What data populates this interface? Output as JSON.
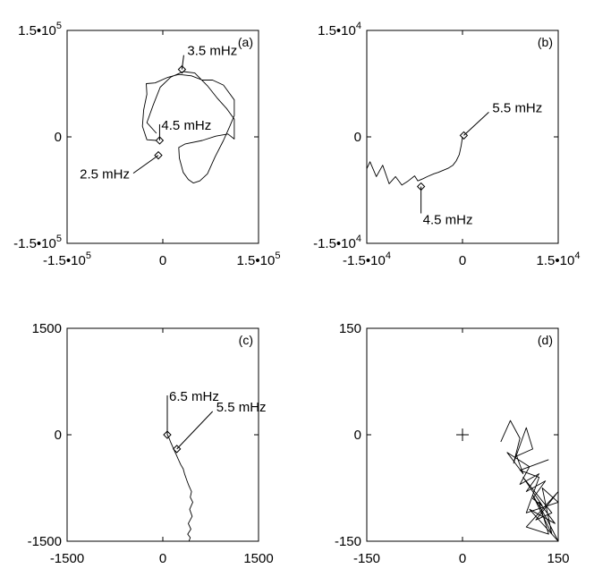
{
  "chart_data": [
    {
      "type": "line",
      "panel_label": "(a)",
      "xlim": [
        -150000,
        150000
      ],
      "ylim": [
        -150000,
        150000
      ],
      "x_ticks": [
        {
          "value": -150000,
          "base": "-1.5•10",
          "exp": "5"
        },
        {
          "value": 0,
          "base": "0",
          "exp": ""
        },
        {
          "value": 150000,
          "base": "1.5•10",
          "exp": "5"
        }
      ],
      "y_ticks": [
        {
          "value": -150000,
          "base": "-1.5•10",
          "exp": "5"
        },
        {
          "value": 0,
          "base": "0",
          "exp": ""
        },
        {
          "value": 150000,
          "base": "1.5•10",
          "exp": "5"
        }
      ],
      "series": [
        {
          "x": [
            -10000,
            -25000,
            -32000,
            -30000,
            -25000,
            -26000,
            -12000,
            8000,
            25000,
            45000,
            62000,
            78000,
            95000,
            112000,
            112000,
            105000,
            95000,
            82000,
            70000,
            58000,
            48000,
            40000,
            32000,
            26000,
            25000,
            35000,
            62000,
            83000,
            102000,
            112000,
            112000,
            100000,
            85000,
            70000,
            50000,
            32000,
            12000,
            -4000,
            -15000,
            -25000,
            -10000
          ],
          "y": [
            -5000,
            -4000,
            15000,
            38000,
            60000,
            75000,
            76000,
            84000,
            88000,
            86000,
            80000,
            80000,
            73000,
            52000,
            30000,
            15000,
            -5000,
            -28000,
            -52000,
            -62000,
            -65000,
            -60000,
            -50000,
            -30000,
            -15000,
            -10000,
            -5000,
            1000,
            4000,
            -3000,
            25000,
            40000,
            55000,
            72000,
            90000,
            92000,
            84000,
            70000,
            45000,
            20000,
            5000
          ]
        }
      ],
      "annotations": [
        {
          "text": "3.5 mHz",
          "x": 30000,
          "y": 95000,
          "dx": 2,
          "dy": -16
        },
        {
          "text": "4.5 mHz",
          "x": -5000,
          "y": -5000,
          "dx": 0,
          "dy": -18
        },
        {
          "text": "2.5 mHz",
          "x": -7000,
          "y": -26000,
          "dx": -28,
          "dy": 20
        }
      ],
      "grid": false
    },
    {
      "type": "line",
      "panel_label": "(b)",
      "xlim": [
        -15000,
        15000
      ],
      "ylim": [
        -15000,
        15000
      ],
      "x_ticks": [
        {
          "value": -15000,
          "base": "-1.5•10",
          "exp": "4"
        },
        {
          "value": 0,
          "base": "0",
          "exp": ""
        },
        {
          "value": 15000,
          "base": "1.5•10",
          "exp": "4"
        }
      ],
      "y_ticks": [
        {
          "value": -15000,
          "base": "-1.5•10",
          "exp": "4"
        },
        {
          "value": 0,
          "base": "0",
          "exp": ""
        },
        {
          "value": 15000,
          "base": "1.5•10",
          "exp": "4"
        }
      ],
      "series": [
        {
          "x": [
            0,
            -200,
            -500,
            -1000,
            -1500,
            -2200,
            -3000,
            -3800,
            -4500,
            -5500,
            -6200,
            -7000,
            -7500,
            -8500,
            -9500,
            -10500,
            -11500,
            -12500,
            -13500,
            -14500,
            -15000
          ],
          "y": [
            0,
            -1200,
            -2500,
            -3400,
            -4000,
            -4400,
            -4700,
            -5000,
            -5200,
            -5600,
            -5900,
            -6200,
            -5500,
            -6200,
            -6800,
            -5600,
            -6600,
            -4000,
            -5600,
            -3500,
            -4500
          ]
        }
      ],
      "annotations": [
        {
          "text": "5.5 mHz",
          "x": 200,
          "y": 200,
          "dx": 28,
          "dy": -26
        },
        {
          "text": "4.5 mHz",
          "x": -6500,
          "y": -7000,
          "dx": 0,
          "dy": 30
        }
      ],
      "grid": false
    },
    {
      "type": "line",
      "panel_label": "(c)",
      "xlim": [
        -1500,
        1500
      ],
      "ylim": [
        -1500,
        1500
      ],
      "x_ticks": [
        {
          "value": -1500,
          "base": "-1500",
          "exp": ""
        },
        {
          "value": 0,
          "base": "0",
          "exp": ""
        },
        {
          "value": 1500,
          "base": "1500",
          "exp": ""
        }
      ],
      "y_ticks": [
        {
          "value": -1500,
          "base": "-1500",
          "exp": ""
        },
        {
          "value": 0,
          "base": "0",
          "exp": ""
        },
        {
          "value": 1500,
          "base": "1500",
          "exp": ""
        }
      ],
      "series": [
        {
          "x": [
            70,
            100,
            120,
            150,
            180,
            210,
            240,
            280,
            320,
            340,
            360,
            380,
            410,
            450,
            430,
            470,
            420,
            460,
            400,
            440,
            390,
            430,
            410,
            440
          ],
          "y": [
            0,
            -50,
            -100,
            -160,
            -220,
            -280,
            -340,
            -420,
            -480,
            -550,
            -600,
            -650,
            -720,
            -800,
            -880,
            -950,
            -1050,
            -1150,
            -1250,
            -1330,
            -1400,
            -1450,
            -1500,
            -1500
          ]
        }
      ],
      "annotations": [
        {
          "text": "6.5 mHz",
          "x": 70,
          "y": 0,
          "dx": 0,
          "dy": -44
        },
        {
          "text": "5.5 mHz",
          "x": 220,
          "y": -200,
          "dx": 40,
          "dy": -42
        }
      ],
      "grid": false
    },
    {
      "type": "scatter",
      "panel_label": "(d)",
      "xlim": [
        -150,
        150
      ],
      "ylim": [
        -150,
        150
      ],
      "x_ticks": [
        {
          "value": -150,
          "base": "-150",
          "exp": ""
        },
        {
          "value": 0,
          "base": "0",
          "exp": ""
        },
        {
          "value": 150,
          "base": "150",
          "exp": ""
        }
      ],
      "y_ticks": [
        {
          "value": -150,
          "base": "-150",
          "exp": ""
        },
        {
          "value": 0,
          "base": "0",
          "exp": ""
        },
        {
          "value": 150,
          "base": "150",
          "exp": ""
        }
      ],
      "origin_marker": {
        "x": 0,
        "y": 0
      },
      "series": [
        {
          "x": [
            60,
            75,
            90,
            80,
            100,
            110,
            85,
            95,
            70,
            105,
            90,
            120,
            100,
            130,
            110,
            125,
            95,
            140,
            115,
            150,
            100,
            135,
            120,
            145,
            105,
            150,
            130,
            110,
            140,
            125,
            150,
            100,
            120,
            90,
            135
          ],
          "y": [
            -10,
            20,
            -5,
            -40,
            10,
            -20,
            -30,
            -55,
            -25,
            -45,
            -70,
            -55,
            -80,
            -65,
            -90,
            -100,
            -60,
            -110,
            -120,
            -80,
            -130,
            -140,
            -95,
            -125,
            -105,
            -150,
            -115,
            -85,
            -140,
            -75,
            -95,
            -110,
            -60,
            -50,
            -35
          ]
        }
      ],
      "annotations": [],
      "grid": false
    }
  ]
}
